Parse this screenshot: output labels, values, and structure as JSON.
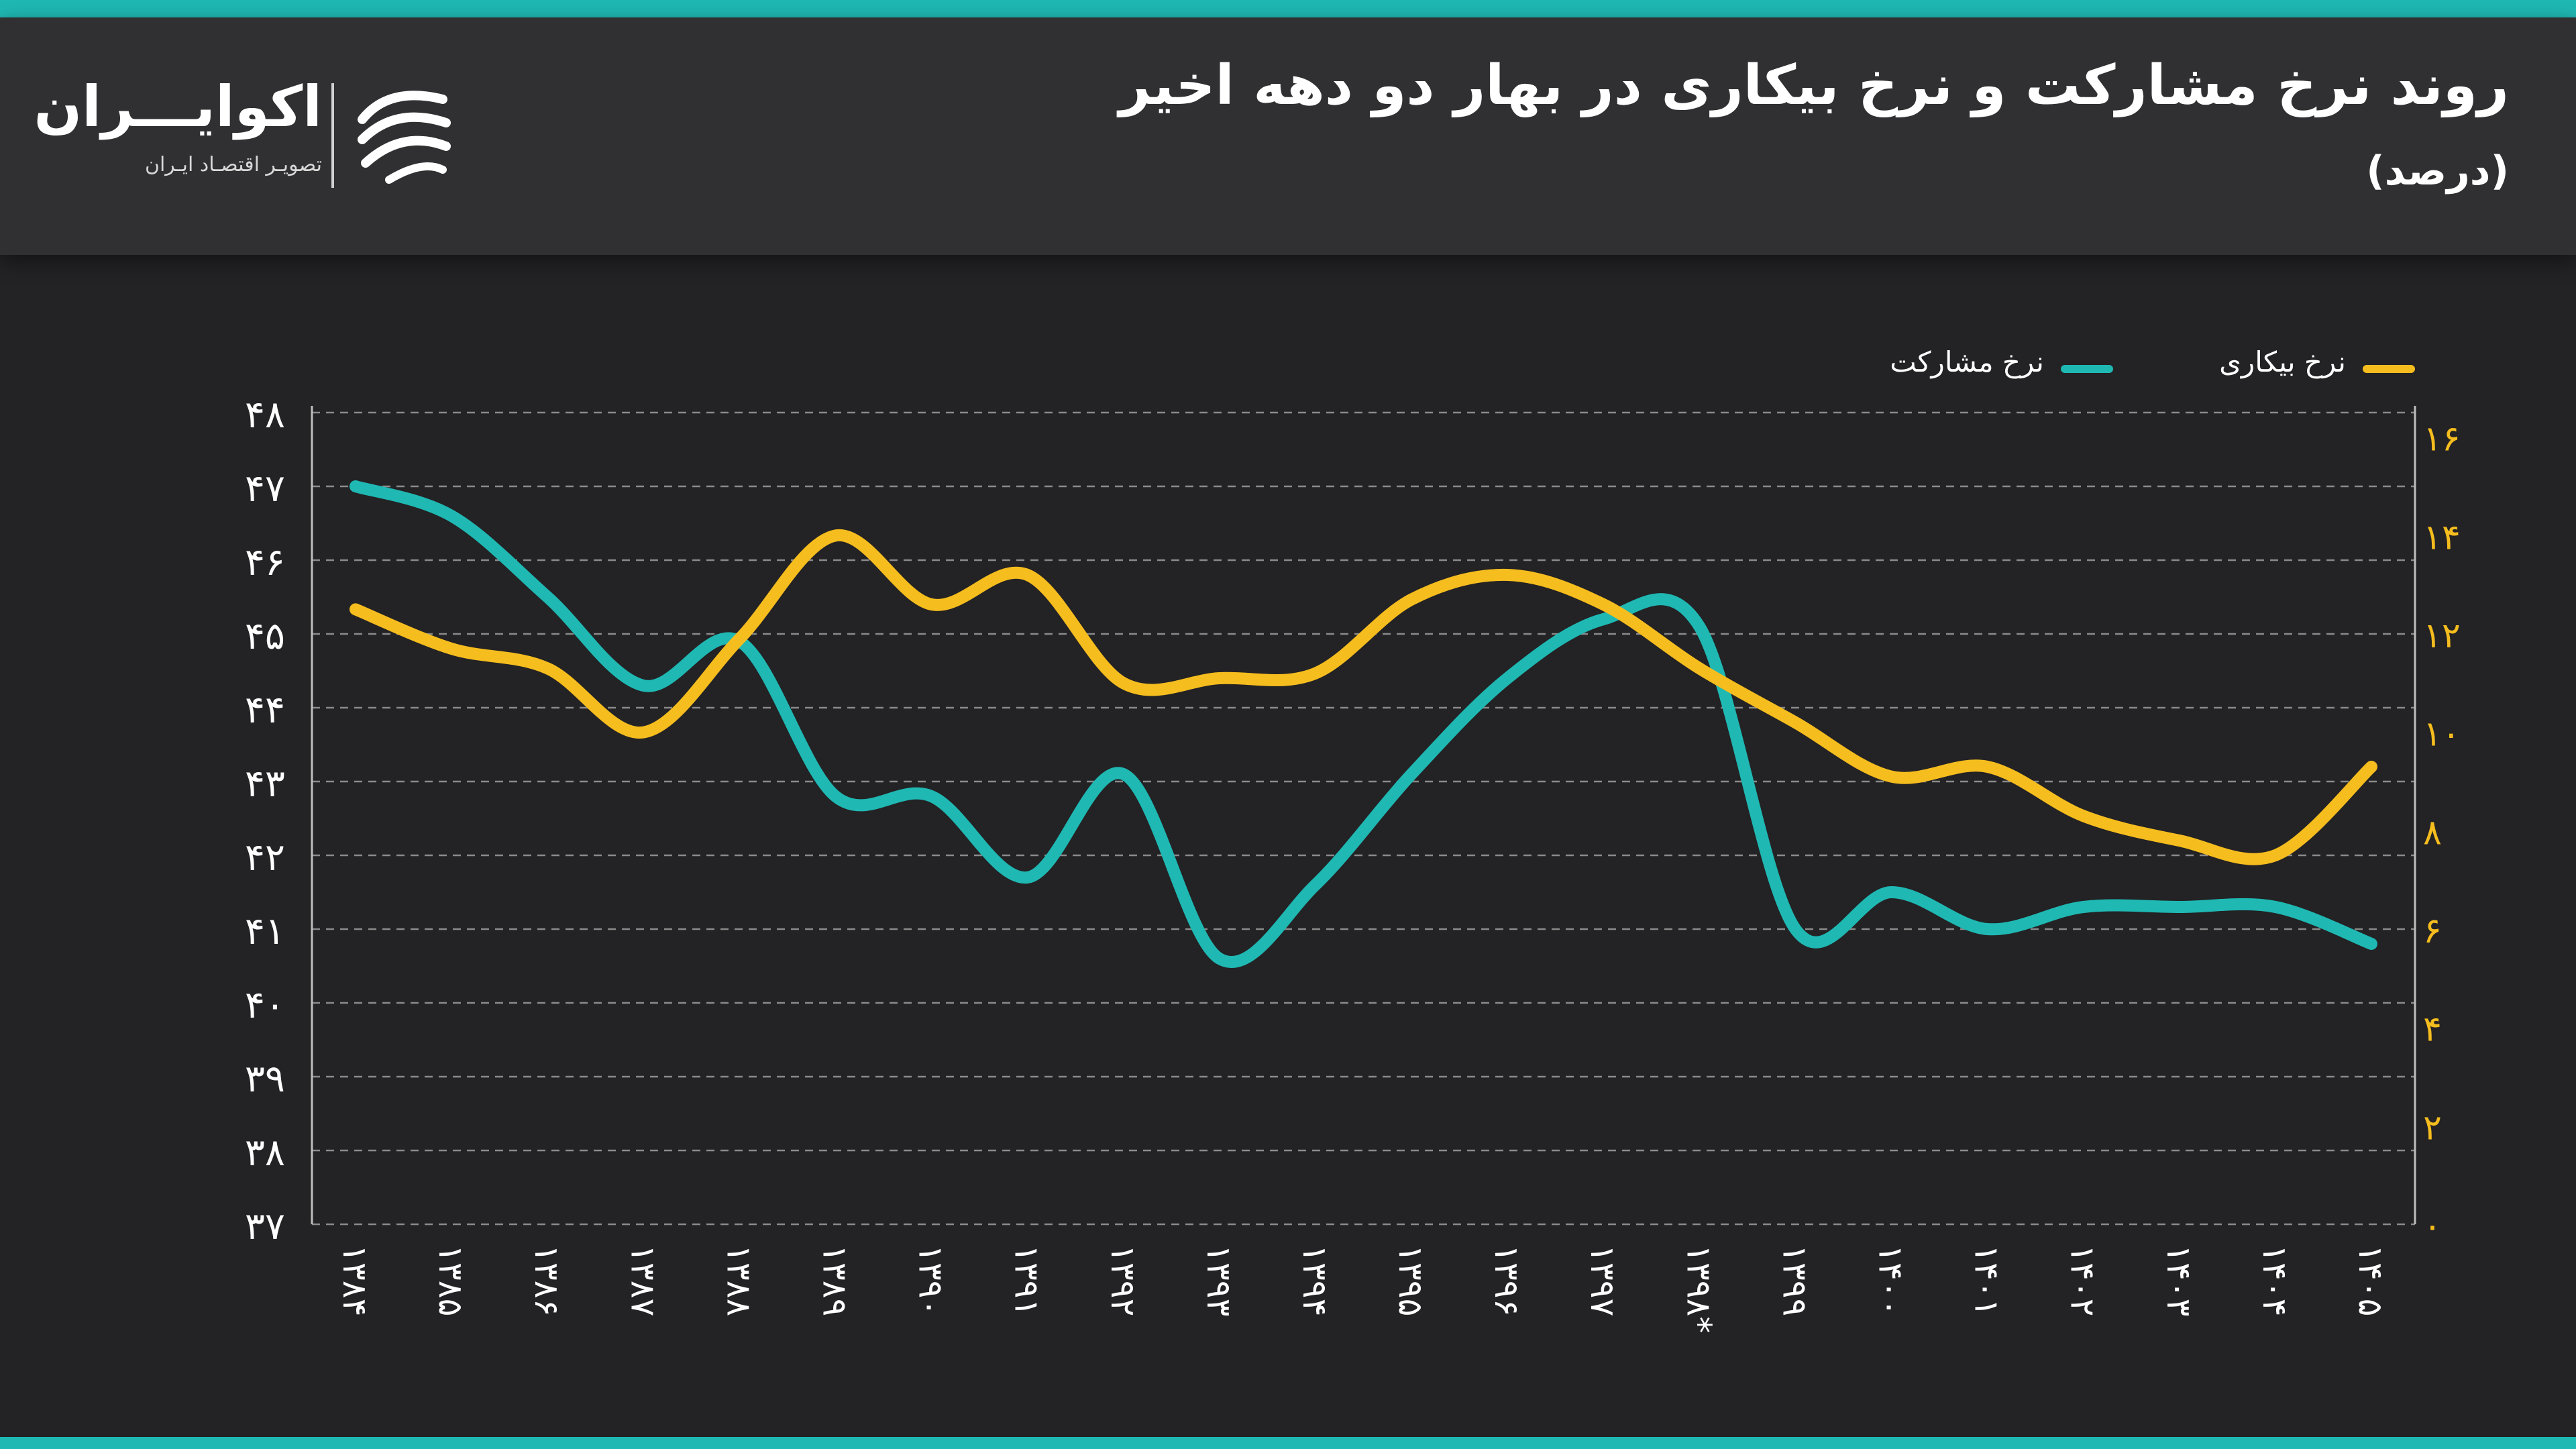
{
  "header": {
    "title": "روند نرخ مشارکت و نرخ بیکاری در بهار دو دهه اخیر",
    "subtitle": "(درصد)"
  },
  "brand": {
    "name": "اکوایـــران",
    "tagline": "تصویـر اقتصـاد ایـران",
    "logo_icon": "ecoiran-logo-icon"
  },
  "colors": {
    "accent": "#1fb8b3",
    "participation": "#1fb8b3",
    "unemployment": "#f5bd1e",
    "background": "#232224",
    "header_background": "#302f31",
    "grid": "#8a8a8a",
    "left_tick": "#ffffff",
    "right_tick": "#f5bd1e"
  },
  "legend": {
    "unemployment_label": "نرخ بیکاری",
    "participation_label": "نرخ مشارکت"
  },
  "chart_data": {
    "type": "line",
    "title": "روند نرخ مشارکت و نرخ بیکاری در بهار دو دهه اخیر",
    "subtitle": "(درصد)",
    "legend_position": "top-right",
    "grid": true,
    "categories": [
      "۱۳۸۴",
      "۱۳۸۵",
      "۱۳۸۶",
      "۱۳۸۷",
      "۱۳۸۸",
      "۱۳۸۹",
      "۱۳۹۰",
      "۱۳۹۱",
      "۱۳۹۲",
      "۱۳۹۳",
      "۱۳۹۴",
      "۱۳۹۵",
      "۱۳۹۶",
      "۱۳۹۷",
      "۱۳۹۸*",
      "۱۳۹۹",
      "۱۴۰۰",
      "۱۴۰۱",
      "۱۴۰۲",
      "۱۴۰۳",
      "۱۴۰۴",
      "۱۴۰۵"
    ],
    "left_axis": {
      "ylim": [
        37,
        48
      ],
      "ticks": [
        "۴۸",
        "۴۷",
        "۴۶",
        "۴۵",
        "۴۴",
        "۴۳",
        "۴۲",
        "۴۱",
        "۴۰",
        "۳۹",
        "۳۸",
        "۳۷"
      ],
      "tick_values": [
        48,
        47,
        46,
        45,
        44,
        43,
        42,
        41,
        40,
        39,
        38,
        37
      ]
    },
    "right_axis": {
      "ylim": [
        0,
        16.5
      ],
      "ticks": [
        "۱۶",
        "۱۴",
        "۱۲",
        "۱۰",
        "۸",
        "۶",
        "۴",
        "۲",
        "۰"
      ],
      "tick_values": [
        16,
        14,
        12,
        10,
        8,
        6,
        4,
        2,
        0
      ]
    },
    "series": [
      {
        "name": "نرخ مشارکت",
        "axis": "left",
        "values": [
          47.0,
          46.6,
          45.5,
          44.3,
          44.9,
          42.8,
          42.8,
          41.7,
          43.1,
          40.6,
          41.6,
          43.1,
          44.4,
          45.2,
          45.1,
          41.0,
          41.5,
          41.0,
          41.3,
          41.3,
          41.3,
          40.8
        ]
      },
      {
        "name": "نرخ بیکاری",
        "axis": "right",
        "values": [
          12.5,
          11.7,
          11.3,
          10.0,
          11.9,
          14.0,
          12.6,
          13.2,
          11.0,
          11.1,
          11.2,
          12.7,
          13.2,
          12.6,
          11.3,
          10.2,
          9.1,
          9.3,
          8.3,
          7.8,
          7.5,
          9.3
        ]
      }
    ]
  }
}
